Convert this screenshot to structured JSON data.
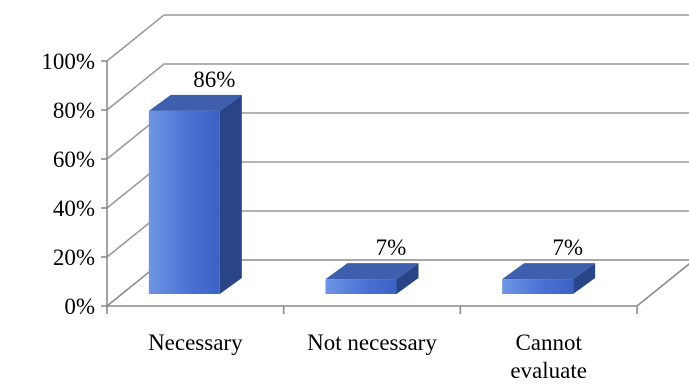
{
  "chart_data": {
    "type": "bar",
    "style": "3d-column",
    "categories": [
      "Necessary",
      "Not necessary",
      "Cannot evaluate"
    ],
    "category_lines": [
      [
        "Necessary"
      ],
      [
        "Not necessary"
      ],
      [
        "Cannot",
        "evaluate"
      ]
    ],
    "values": [
      86,
      7,
      7
    ],
    "data_labels": [
      "86%",
      "7%",
      "7%"
    ],
    "y_ticks": [
      "0%",
      "20%",
      "40%",
      "60%",
      "80%",
      "100%"
    ],
    "y_tick_values": [
      0,
      20,
      40,
      60,
      80,
      100
    ],
    "ylim": [
      0,
      100
    ],
    "title": "",
    "xlabel": "",
    "ylabel": "",
    "grid": true,
    "legend": "none",
    "colors": {
      "bar_front": "#4a73d4",
      "bar_front_light": "#6f95e6",
      "bar_top": "#3e5fae",
      "bar_side": "#2a4488",
      "grid": "#9a9a9a"
    }
  }
}
